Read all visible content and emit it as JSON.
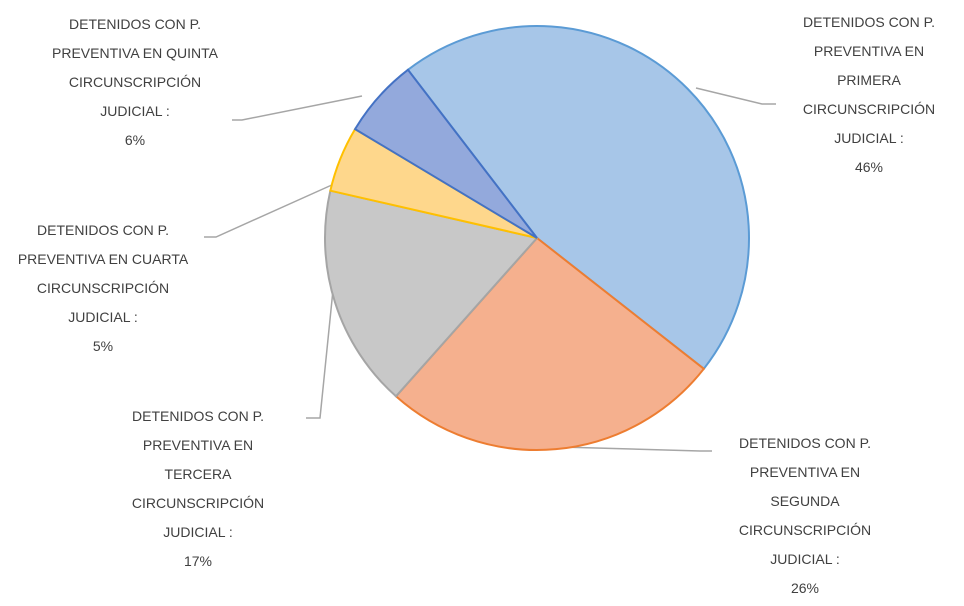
{
  "chart_data": {
    "type": "pie",
    "categories": [
      "DETENIDOS CON P. PREVENTIVA EN PRIMERA CIRCUNSCRIPCIÓN JUDICIAL :",
      "DETENIDOS CON P. PREVENTIVA EN SEGUNDA CIRCUNSCRIPCIÓN JUDICIAL :",
      "DETENIDOS CON P. PREVENTIVA EN TERCERA CIRCUNSCRIPCIÓN JUDICIAL :",
      "DETENIDOS CON P. PREVENTIVA EN CUARTA CIRCUNSCRIPCIÓN JUDICIAL :",
      "DETENIDOS CON P. PREVENTIVA EN QUINTA CIRCUNSCRIPCIÓN JUDICIAL :"
    ],
    "values": [
      46,
      26,
      17,
      5,
      6
    ],
    "value_labels": [
      "46%",
      "26%",
      "17%",
      "5%",
      "6%"
    ],
    "colors": [
      "#a7c6e8",
      "#f5b08e",
      "#c8c8c8",
      "#fed78c",
      "#93a9dc"
    ],
    "stroke_colors": [
      "#5b9bd5",
      "#ed7d31",
      "#a5a5a5",
      "#ffc000",
      "#4472c4"
    ]
  }
}
